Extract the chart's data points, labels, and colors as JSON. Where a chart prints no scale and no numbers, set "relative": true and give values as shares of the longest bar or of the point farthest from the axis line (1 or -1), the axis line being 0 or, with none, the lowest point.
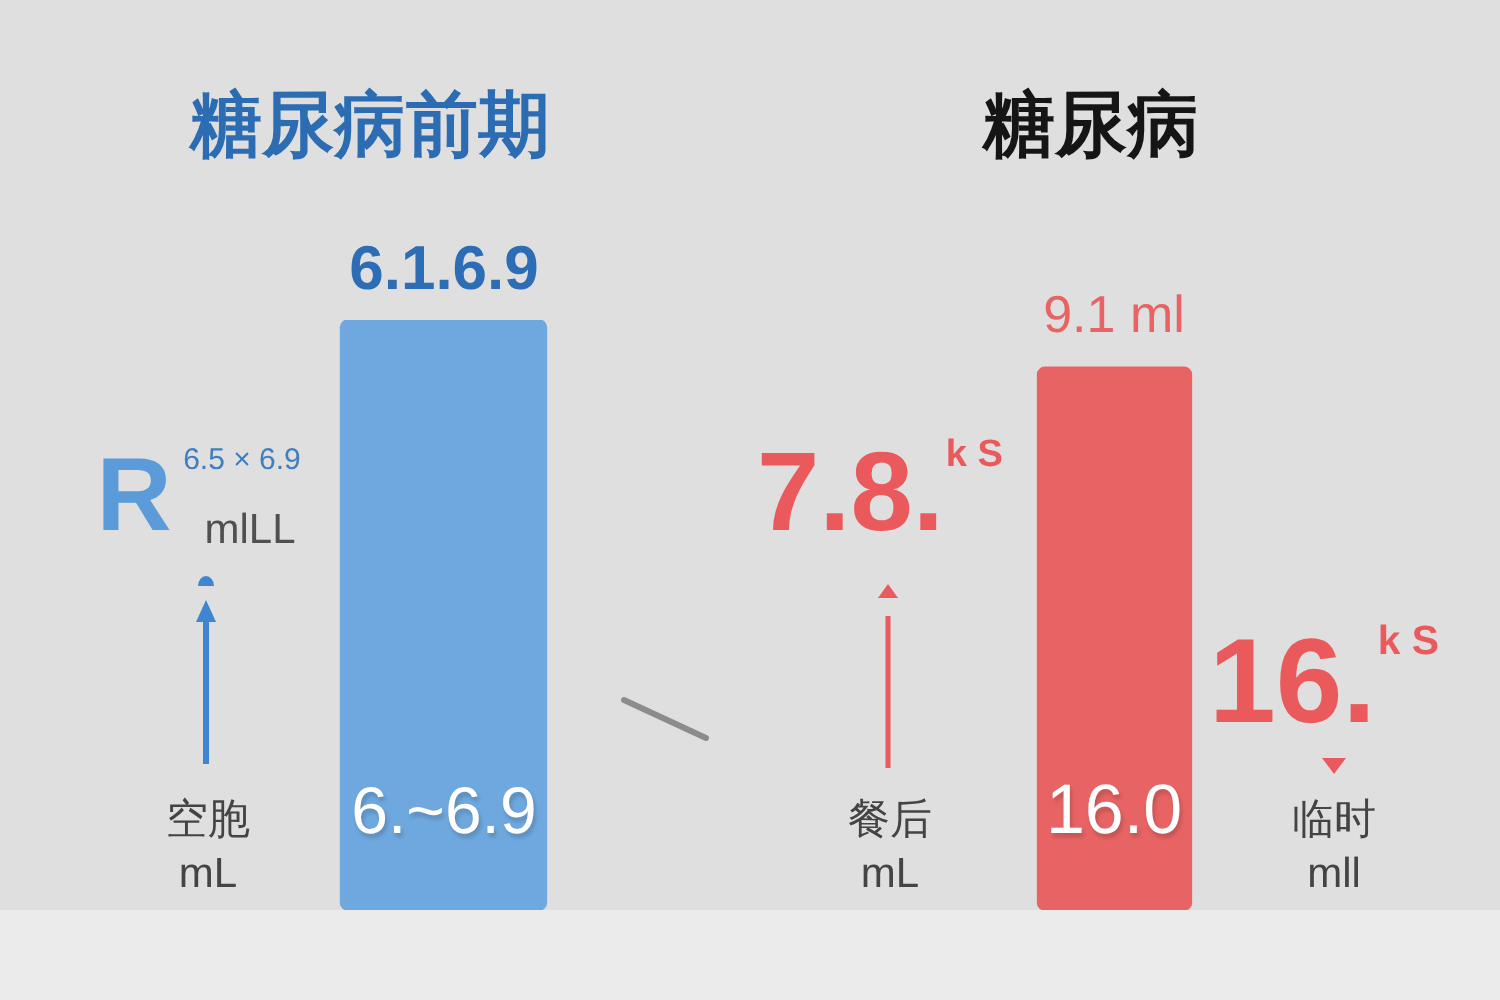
{
  "chart_data": {
    "type": "bar",
    "categories": [
      "糖尿病前期",
      "糖尿病"
    ],
    "values": [
      1,
      0.92
    ],
    "colors": [
      "#6fa8df",
      "#e86464"
    ],
    "relative": true,
    "annotations": [
      "6.1.6.9",
      "9.1 ml",
      "6.~6.9",
      "16.0",
      "R",
      "6.5 × 6.9",
      "mlLL",
      "空胞",
      "mL",
      "7.8.$^{k S}$",
      "餐后",
      "mL",
      "16.$^{k S}$",
      "临时",
      "mll"
    ]
  }
}
